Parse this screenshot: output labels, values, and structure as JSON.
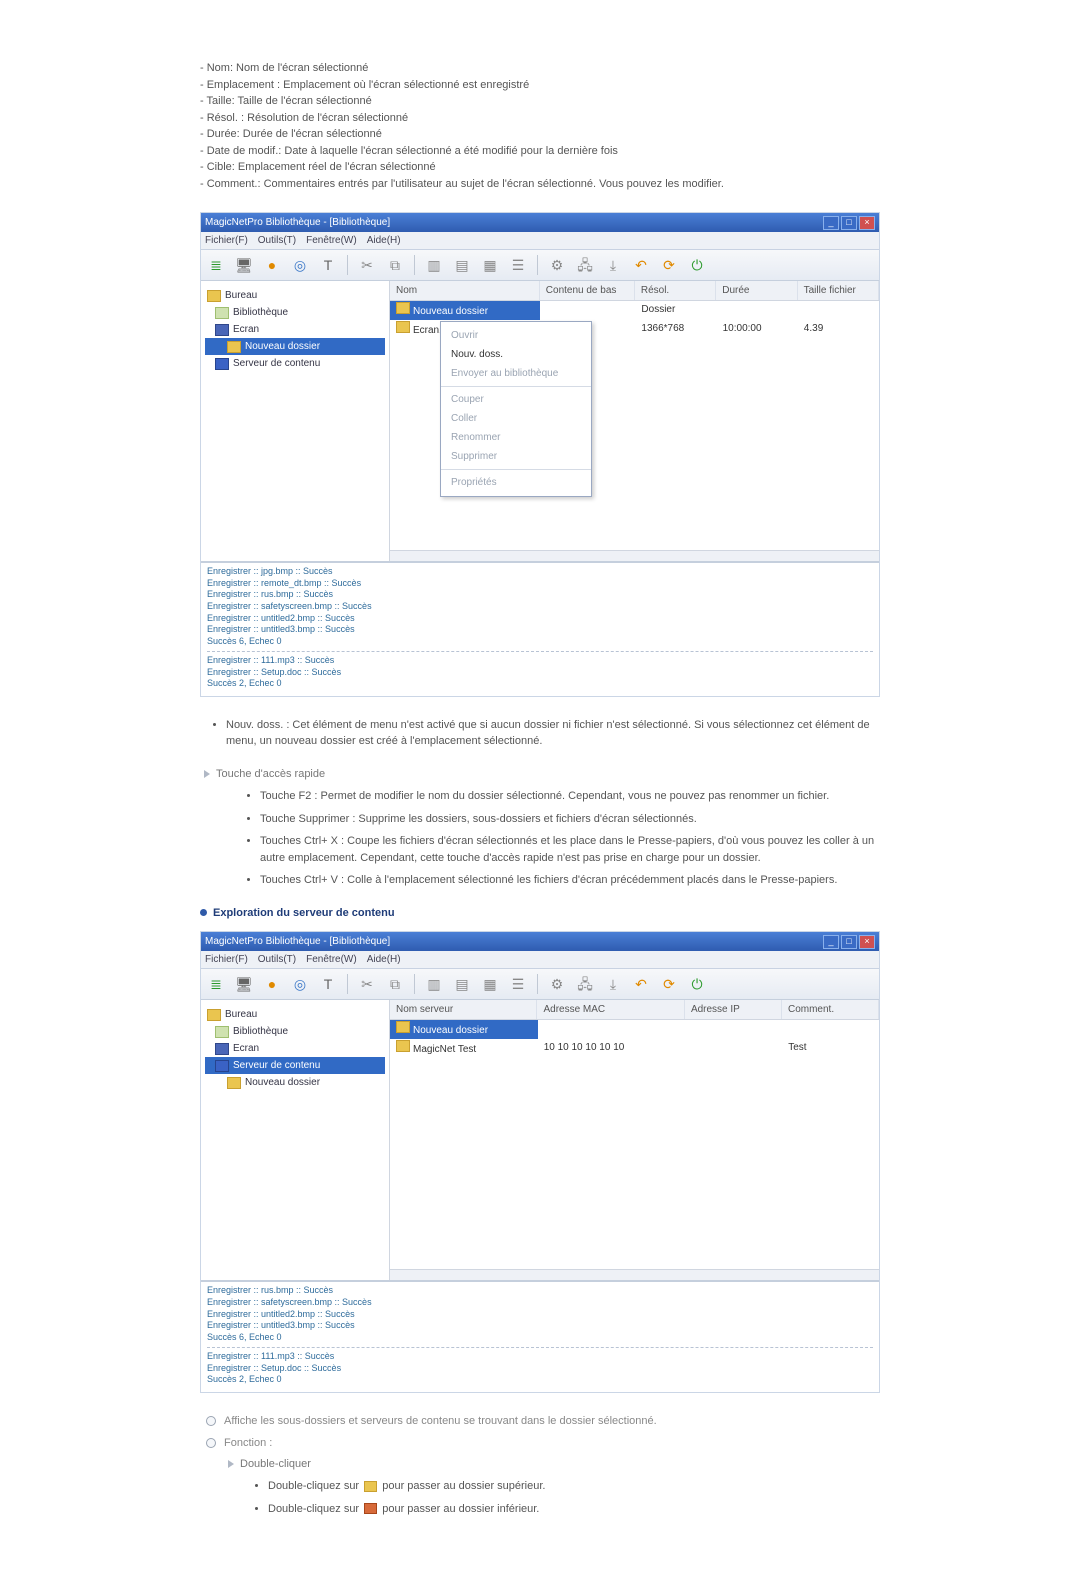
{
  "intro_lines": [
    "- Nom: Nom de l'écran sélectionné",
    "- Emplacement : Emplacement où l'écran sélectionné est enregistré",
    "- Taille: Taille de l'écran sélectionné",
    "- Résol. : Résolution de l'écran sélectionné",
    "- Durée: Durée de l'écran sélectionné",
    "- Date de modif.: Date à laquelle l'écran sélectionné a été modifié pour la dernière fois",
    "- Cible: Emplacement réel de l'écran sélectionné",
    "- Comment.: Commentaires entrés par l'utilisateur au sujet de l'écran sélectionné. Vous pouvez les modifier."
  ],
  "fig1": {
    "title": "MagicNetPro Bibliothèque - [Bibliothèque]",
    "menubar": [
      "Fichier(F)",
      "Outils(T)",
      "Fenêtre(W)",
      "Aide(H)"
    ],
    "tree": [
      {
        "label": "Bureau",
        "icon": "ic-desk",
        "indent": ""
      },
      {
        "label": "Bibliothèque",
        "icon": "ic-lib",
        "indent": "tree-ind1"
      },
      {
        "label": "Ecran",
        "icon": "ic-screen",
        "indent": "tree-ind1"
      },
      {
        "label": "Nouveau dossier",
        "icon": "ic-folder",
        "indent": "tree-ind2",
        "sel": true
      },
      {
        "label": "Serveur de contenu",
        "icon": "ic-srv",
        "indent": "tree-ind1"
      }
    ],
    "list_head": [
      "Nom",
      "Contenu de bas",
      "Résol.",
      "Durée",
      "Taille fichier"
    ],
    "list_rows": [
      {
        "name": "Nouveau dossier",
        "sel": true,
        "cells": [
          "",
          "Dossier",
          "",
          ""
        ]
      },
      {
        "name": "Ecran1",
        "cells": [
          "",
          "1366*768",
          "10:00:00",
          "4.39"
        ]
      }
    ],
    "ctx_items": [
      {
        "txt": "Ouvrir",
        "en": false
      },
      {
        "txt": "Nouv. doss.",
        "en": true
      },
      {
        "txt": "Envoyer au bibliothèque",
        "en": false
      },
      {
        "sep": true
      },
      {
        "txt": "Couper",
        "en": false
      },
      {
        "txt": "Coller",
        "en": false
      },
      {
        "txt": "Renommer",
        "en": false
      },
      {
        "txt": "Supprimer",
        "en": false
      },
      {
        "sep": true
      },
      {
        "txt": "Propriétés",
        "en": false
      }
    ],
    "log_group1": [
      "Enregistrer :: jpg.bmp :: Succès",
      "Enregistrer :: remote_dt.bmp :: Succès",
      "Enregistrer :: rus.bmp :: Succès",
      "Enregistrer :: safetyscreen.bmp :: Succès",
      "Enregistrer :: untitled2.bmp :: Succès",
      "Enregistrer :: untitled3.bmp :: Succès",
      "Succès 6, Echec 0"
    ],
    "log_group2": [
      "Enregistrer :: 111.mp3 :: Succès",
      "Enregistrer :: Setup.doc :: Succès",
      "Succès 2, Echec 0"
    ]
  },
  "nouv_doss": "Nouv. doss. : Cet élément de menu n'est activé que si aucun dossier ni fichier n'est sélectionné. Si vous sélectionnez cet élément de menu, un nouveau dossier est créé à l'emplacement sélectionné.",
  "touche_label": "Touche d'accès rapide",
  "touche_items": [
    "Touche F2 : Permet de modifier le nom du dossier sélectionné. Cependant, vous ne pouvez pas renommer un fichier.",
    "Touche Supprimer : Supprime les dossiers, sous-dossiers et fichiers d'écran sélectionnés.",
    "Touches Ctrl+ X : Coupe les fichiers d'écran sélectionnés et les place dans le Presse-papiers, d'où vous pouvez les coller à un autre emplacement. Cependant, cette touche d'accès rapide n'est pas prise en charge pour un dossier.",
    "Touches Ctrl+ V : Colle à l'emplacement sélectionné les fichiers d'écran précédemment placés dans le Presse-papiers."
  ],
  "heading2": "Exploration du serveur de contenu",
  "fig2": {
    "title": "MagicNetPro Bibliothèque - [Bibliothèque]",
    "menubar": [
      "Fichier(F)",
      "Outils(T)",
      "Fenêtre(W)",
      "Aide(H)"
    ],
    "tree": [
      {
        "label": "Bureau",
        "icon": "ic-desk",
        "indent": ""
      },
      {
        "label": "Bibliothèque",
        "icon": "ic-lib",
        "indent": "tree-ind1"
      },
      {
        "label": "Ecran",
        "icon": "ic-screen",
        "indent": "tree-ind1"
      },
      {
        "label": "Serveur de contenu",
        "icon": "ic-srv",
        "indent": "tree-ind1",
        "sel": true
      },
      {
        "label": "Nouveau dossier",
        "icon": "ic-folder",
        "indent": "tree-ind2"
      }
    ],
    "list_head": [
      "Nom serveur",
      "Adresse MAC",
      "Adresse IP",
      "Comment."
    ],
    "list_rows": [
      {
        "name": "Nouveau dossier",
        "sel": true,
        "cells": [
          "",
          "",
          ""
        ]
      },
      {
        "name": "MagicNet Test",
        "cells": [
          "10 10 10 10 10 10",
          "",
          "Test"
        ]
      }
    ],
    "log_group1": [
      "Enregistrer :: rus.bmp :: Succès",
      "Enregistrer :: safetyscreen.bmp :: Succès",
      "Enregistrer :: untitled2.bmp :: Succès",
      "Enregistrer :: untitled3.bmp :: Succès",
      "Succès 6, Echec 0"
    ],
    "log_group2": [
      "Enregistrer :: 111.mp3 :: Succès",
      "Enregistrer :: Setup.doc :: Succès",
      "Succès 2, Echec 0"
    ]
  },
  "affiche": "Affiche les sous-dossiers et serveurs de contenu se trouvant dans le dossier sélectionné.",
  "fonction": "Fonction :",
  "double_click_label": "Double-cliquer",
  "double_click_items": {
    "a_pre": "Double-cliquez sur ",
    "a_post": " pour passer au dossier supérieur.",
    "b_pre": "Double-cliquez sur ",
    "b_post": " pour passer au dossier inférieur."
  }
}
